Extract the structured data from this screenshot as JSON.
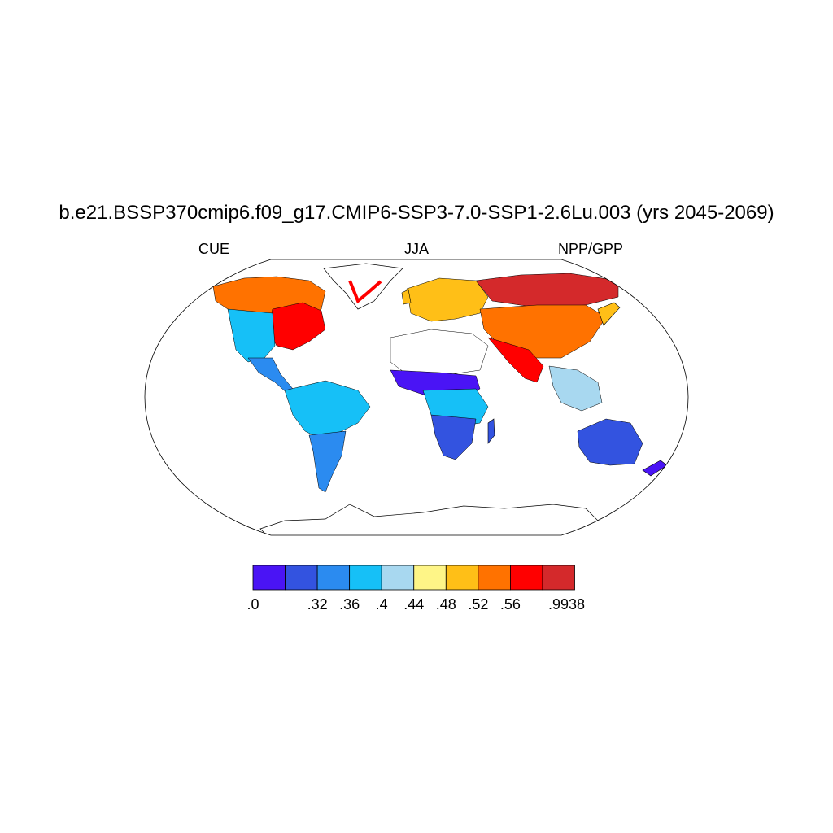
{
  "title": "b.e21.BSSP370cmip6.f09_g17.CMIP6-SSP3-7.0-SSP1-2.6Lu.003 (yrs 2045-2069)",
  "left_string": "CUE",
  "center_string": "JJA",
  "right_string": "NPP/GPP",
  "colorbar": {
    "colors": [
      "#4a14f5",
      "#3353e0",
      "#2b8bf0",
      "#16c0f7",
      "#a8d8f0",
      "#fef587",
      "#ffbf17",
      "#ff7200",
      "#ff0000",
      "#d4292b"
    ],
    "labels": [
      ".0",
      ".32",
      ".36",
      ".4",
      ".44",
      ".48",
      ".52",
      ".56",
      ".9938"
    ]
  },
  "map": {
    "projection": "robinson",
    "regions": [
      {
        "name": "north-america-boreal",
        "color": "#ff7200"
      },
      {
        "name": "north-america-east",
        "color": "#ff0000"
      },
      {
        "name": "north-america-west",
        "color": "#16c0f7"
      },
      {
        "name": "central-america",
        "color": "#2b8bf0"
      },
      {
        "name": "amazon",
        "color": "#16c0f7"
      },
      {
        "name": "south-america-south",
        "color": "#2b8bf0"
      },
      {
        "name": "europe",
        "color": "#ffbf17"
      },
      {
        "name": "siberia",
        "color": "#d4292b"
      },
      {
        "name": "central-asia",
        "color": "#ff7200"
      },
      {
        "name": "sahara",
        "color": "#ffffff"
      },
      {
        "name": "sahel",
        "color": "#4a14f5"
      },
      {
        "name": "central-africa",
        "color": "#16c0f7"
      },
      {
        "name": "southern-africa",
        "color": "#3353e0"
      },
      {
        "name": "australia",
        "color": "#3353e0"
      },
      {
        "name": "south-asia",
        "color": "#ff0000"
      },
      {
        "name": "southeast-asia",
        "color": "#a8d8f0"
      }
    ]
  }
}
